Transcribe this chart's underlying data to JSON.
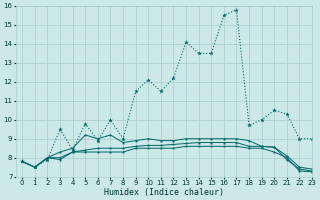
{
  "title": "",
  "xlabel": "Humidex (Indice chaleur)",
  "ylabel": "",
  "bg_color": "#cce8e8",
  "grid_color": "#aacccc",
  "line_color": "#006666",
  "xmin": -0.5,
  "xmax": 23,
  "ymin": 7,
  "ymax": 16,
  "x_ticks": [
    0,
    1,
    2,
    3,
    4,
    5,
    6,
    7,
    8,
    9,
    10,
    11,
    12,
    13,
    14,
    15,
    16,
    17,
    18,
    19,
    20,
    21,
    22,
    23
  ],
  "y_ticks": [
    7,
    8,
    9,
    10,
    11,
    12,
    13,
    14,
    15,
    16
  ],
  "series1_x": [
    0,
    1,
    2,
    3,
    4,
    5,
    6,
    7,
    8,
    9,
    10,
    11,
    12,
    13,
    14,
    15,
    16,
    17,
    18,
    19,
    20,
    21,
    22,
    23
  ],
  "series1_y": [
    7.8,
    7.5,
    7.9,
    9.5,
    8.4,
    9.8,
    8.9,
    10.0,
    9.0,
    11.5,
    12.1,
    11.5,
    12.2,
    14.1,
    13.5,
    13.5,
    15.5,
    15.8,
    9.7,
    10.0,
    10.5,
    10.3,
    9.0,
    9.0
  ],
  "series2_x": [
    0,
    1,
    2,
    3,
    4,
    5,
    6,
    7,
    8,
    9,
    10,
    11,
    12,
    13,
    14,
    15,
    16,
    17,
    18,
    19,
    20,
    21,
    22,
    23
  ],
  "series2_y": [
    7.8,
    7.5,
    8.0,
    8.0,
    8.3,
    8.4,
    8.5,
    8.5,
    8.5,
    8.6,
    8.65,
    8.65,
    8.7,
    8.75,
    8.8,
    8.8,
    8.8,
    8.8,
    8.6,
    8.6,
    8.55,
    8.1,
    7.5,
    7.4
  ],
  "series3_x": [
    0,
    1,
    2,
    3,
    4,
    5,
    6,
    7,
    8,
    9,
    10,
    11,
    12,
    13,
    14,
    15,
    16,
    17,
    18,
    19,
    20,
    21,
    22,
    23
  ],
  "series3_y": [
    7.8,
    7.5,
    8.0,
    8.3,
    8.5,
    9.2,
    9.0,
    9.2,
    8.8,
    8.9,
    9.0,
    8.9,
    8.9,
    9.0,
    9.0,
    9.0,
    9.0,
    9.0,
    8.9,
    8.6,
    8.55,
    7.9,
    7.4,
    7.3
  ],
  "series4_x": [
    0,
    1,
    2,
    3,
    4,
    5,
    6,
    7,
    8,
    9,
    10,
    11,
    12,
    13,
    14,
    15,
    16,
    17,
    18,
    19,
    20,
    21,
    22,
    23
  ],
  "series4_y": [
    7.8,
    7.5,
    8.0,
    7.9,
    8.3,
    8.3,
    8.3,
    8.3,
    8.3,
    8.5,
    8.5,
    8.5,
    8.5,
    8.6,
    8.6,
    8.6,
    8.6,
    8.6,
    8.5,
    8.5,
    8.3,
    8.0,
    7.3,
    7.25
  ]
}
